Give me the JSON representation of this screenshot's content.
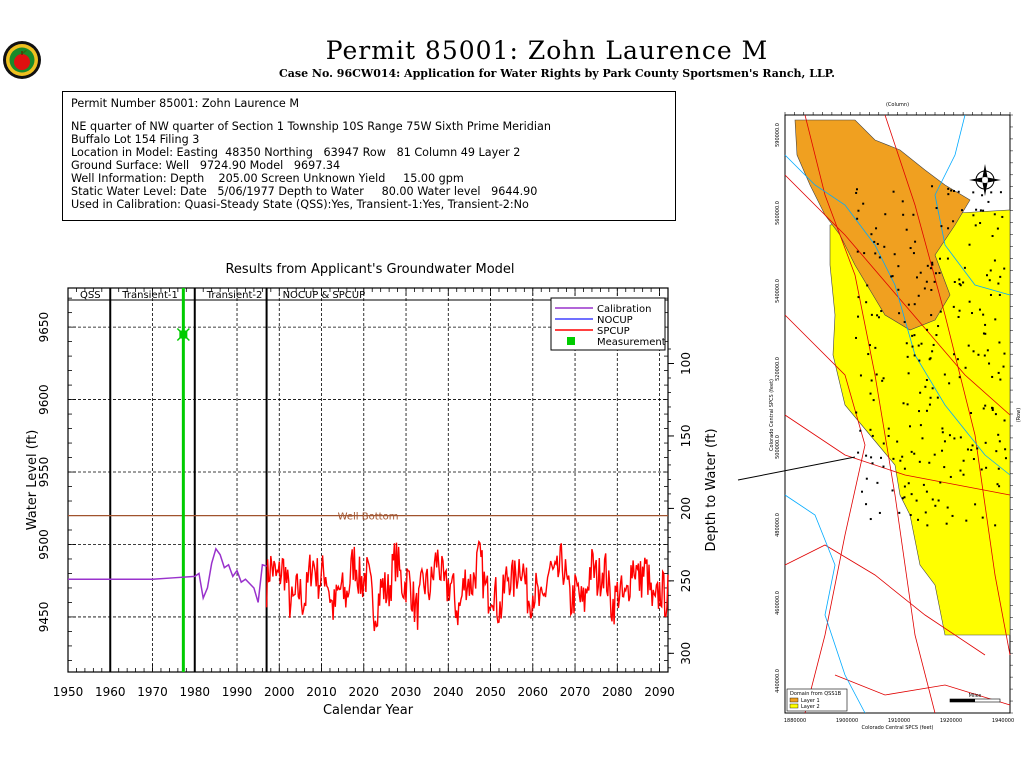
{
  "header": {
    "title": "Permit 85001:  Zohn Laurence M",
    "subtitle": "Case No. 96CW014: Application for Water Rights by Park County Sportsmen's Ranch, LLP."
  },
  "info": {
    "heading": "Permit Number 85001: Zohn Laurence M",
    "lines": [
      "NE quarter of NW quarter of Section 1 Township 10S Range 75W Sixth Prime Meridian",
      "Buffalo Lot 154 Filing 3",
      "Location in Model: Easting  48350 Northing   63947 Row   81 Column 49 Layer 2",
      "Ground Surface: Well   9724.90 Model   9697.34",
      "Well Information: Depth    205.00 Screen Unknown Yield     15.00 gpm",
      "Static Water Level: Date   5/06/1977 Depth to Water     80.00 Water level   9644.90",
      "Used in Calibration: Quasi-Steady State (QSS):Yes, Transient-1:Yes, Transient-2:No"
    ]
  },
  "chart_data": {
    "type": "line",
    "title": "Results from Applicant's Groundwater Model",
    "xlabel": "Calendar Year",
    "ylabel": "Water Level (ft)",
    "y2label": "Depth to Water (ft)",
    "xlim": [
      1950,
      2092
    ],
    "ylim": [
      9412,
      9677
    ],
    "xticks": [
      1950,
      1960,
      1970,
      1980,
      1990,
      2000,
      2010,
      2020,
      2030,
      2040,
      2050,
      2060,
      2070,
      2080,
      2090
    ],
    "yticks": [
      9450,
      9500,
      9550,
      9600,
      9650
    ],
    "y2ticks": [
      100,
      150,
      200,
      250,
      300
    ],
    "ground_surface": 9724.9,
    "grid": true,
    "legend_position": "top-right",
    "periods": [
      {
        "label": "QSS",
        "start": 1950,
        "end": 1960
      },
      {
        "label": "Transient-1",
        "start": 1960,
        "end": 1980
      },
      {
        "label": "Transient-2",
        "start": 1980,
        "end": 1997
      },
      {
        "label": "NOCUP  &  SPCUP",
        "start": 1997,
        "end": 2092
      }
    ],
    "well_bottom": {
      "label": "Well Bottom",
      "value": 9519.9,
      "color": "#a0522d"
    },
    "measurement_line_year": 1977.3,
    "series": [
      {
        "name": "Calibration",
        "color": "#9932cc",
        "points": [
          [
            1950,
            9476
          ],
          [
            1960,
            9476
          ],
          [
            1970,
            9476
          ],
          [
            1975,
            9477
          ],
          [
            1980,
            9478
          ],
          [
            1981,
            9480
          ],
          [
            1982,
            9463
          ],
          [
            1983,
            9470
          ],
          [
            1984,
            9487
          ],
          [
            1985,
            9497
          ],
          [
            1986,
            9493
          ],
          [
            1987,
            9484
          ],
          [
            1988,
            9486
          ],
          [
            1989,
            9478
          ],
          [
            1990,
            9482
          ],
          [
            1991,
            9474
          ],
          [
            1992,
            9476
          ],
          [
            1993,
            9473
          ],
          [
            1994,
            9470
          ],
          [
            1995,
            9460
          ],
          [
            1996,
            9486
          ],
          [
            1997,
            9485
          ]
        ]
      },
      {
        "name": "NOCUP",
        "color": "#4040ff",
        "points": []
      },
      {
        "name": "SPCUP",
        "color": "#ff0000",
        "seed": 7,
        "start": 1997,
        "end": 2092,
        "base": 9472,
        "amp": 22
      },
      {
        "name": "Measurement",
        "color": "#00cc00",
        "points": [
          [
            1977.3,
            9644.9
          ]
        ]
      }
    ]
  },
  "map": {
    "top_label": "(Column)",
    "left_axis_label": "Colorado Central SPCS (feet)",
    "bottom_axis_label": "Colorado Central SPCS (feet)",
    "right_axis_label": "(Row)",
    "left_ticks": [
      "590000.0",
      "560000.0",
      "540000.0",
      "520000.0",
      "500000.0",
      "480000.0",
      "460000.0",
      "440000.0"
    ],
    "bottom_ticks": [
      "1880000",
      "1900000",
      "1910000",
      "1920000",
      "1940000"
    ],
    "legend_title": "Domain from QSS1B",
    "legend_items": [
      {
        "label": "Layer 1",
        "color": "#f0a020"
      },
      {
        "label": "Layer 2",
        "color": "#ffff00"
      }
    ],
    "scale_label": "Miles"
  }
}
